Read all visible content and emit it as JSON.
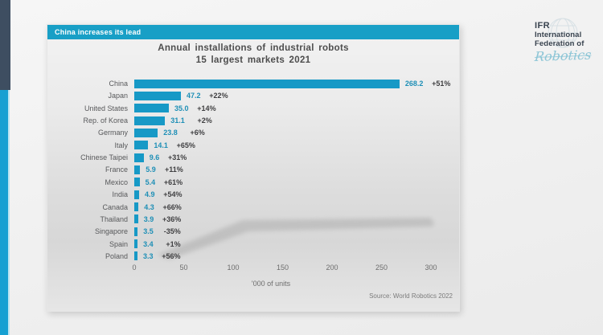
{
  "colors": {
    "accent": "#189fc6",
    "side_accent": "#16a0d2",
    "dark_accent": "#3e4e61",
    "bar": "#1799c6",
    "value_color": "#1e8fb6"
  },
  "header": {
    "label": "China increases its lead"
  },
  "logo": {
    "line1": "IFR",
    "line2": "International",
    "line3": "Federation of",
    "script": "Robotics"
  },
  "chart_data": {
    "type": "bar",
    "orientation": "horizontal",
    "title": "Annual installations of industrial robots",
    "subtitle": "15 largest markets 2021",
    "categories": [
      "China",
      "Japan",
      "United States",
      "Rep. of Korea",
      "Germany",
      "Italy",
      "Chinese Taipei",
      "France",
      "Mexico",
      "India",
      "Canada",
      "Thailand",
      "Singapore",
      "Spain",
      "Poland"
    ],
    "values": [
      268.2,
      47.2,
      35.0,
      31.1,
      23.8,
      14.1,
      9.6,
      5.9,
      5.4,
      4.9,
      4.3,
      3.9,
      3.5,
      3.4,
      3.3
    ],
    "value_labels": [
      "268.2",
      "47.2",
      "35.0",
      "31.1",
      "23.8",
      "14.1",
      "9.6",
      "5.9",
      "5.4",
      "4.9",
      "4.3",
      "3.9",
      "3.5",
      "3.4",
      "3.3"
    ],
    "growth_labels": [
      "+51%",
      "+22%",
      "+14%",
      "+2%",
      "+6%",
      "+65%",
      "+31%",
      "+11%",
      "+61%",
      "+54%",
      "+66%",
      "+36%",
      "-35%",
      "+1%",
      "+56%"
    ],
    "growth_pct": [
      51,
      22,
      14,
      2,
      6,
      65,
      31,
      11,
      61,
      54,
      66,
      36,
      -35,
      1,
      56
    ],
    "x_ticks": [
      0,
      50,
      100,
      150,
      200,
      250,
      300
    ],
    "xlim": [
      0,
      300
    ],
    "xlabel": "'000 of units",
    "source": "Source: World Robotics 2022",
    "grid": false,
    "legend": false
  }
}
